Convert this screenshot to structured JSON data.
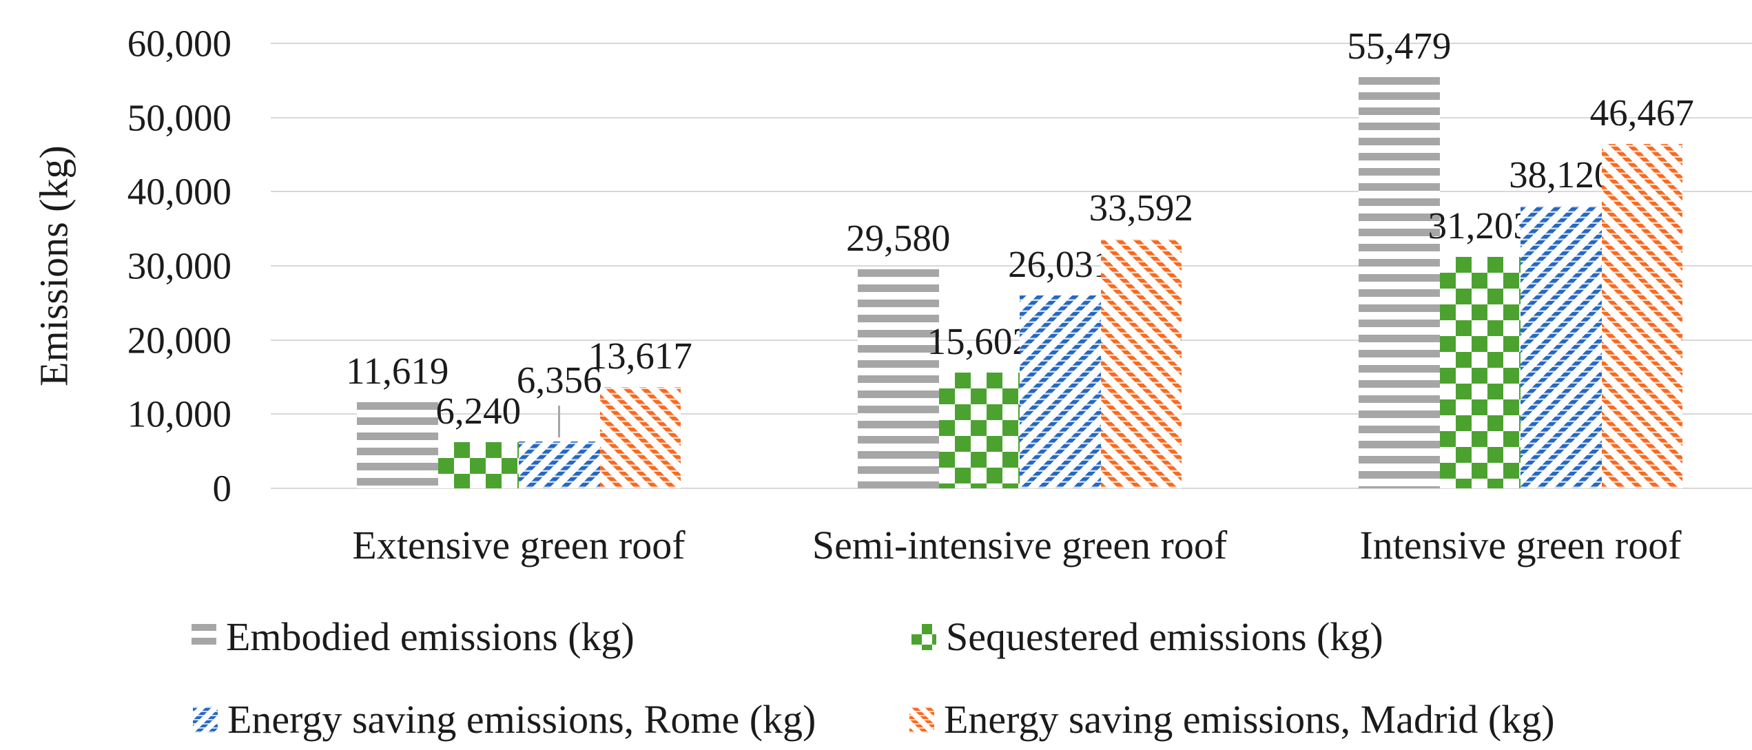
{
  "chart_data": {
    "type": "bar",
    "title": "",
    "ylabel": "Emissions (kg)",
    "xlabel": "",
    "categories": [
      "Extensive green roof",
      "Semi-intensive green roof",
      "Intensive green roof"
    ],
    "series": [
      {
        "name": "Embodied emissions (kg)",
        "values": [
          11619,
          29580,
          55479
        ],
        "value_labels": [
          "11,619",
          "29,580",
          "55,479"
        ],
        "color": "#a6a6a6",
        "pattern": "horizontal-stripes"
      },
      {
        "name": "Sequestered emissions (kg)",
        "values": [
          6240,
          15602,
          31203
        ],
        "value_labels": [
          "6,240",
          "15,602",
          "31,203"
        ],
        "color": "#4ca22f",
        "pattern": "checkerboard"
      },
      {
        "name": "Energy saving emissions, Rome (kg)",
        "values": [
          6356,
          26031,
          38120
        ],
        "value_labels": [
          "6,356",
          "26,031",
          "38,120"
        ],
        "color": "#2668c2",
        "pattern": "diagonal-down"
      },
      {
        "name": "Energy saving emissions, Madrid (kg)",
        "values": [
          13617,
          33592,
          46467
        ],
        "value_labels": [
          "13,617",
          "33,592",
          "46,467"
        ],
        "color": "#f86a1e",
        "pattern": "diagonal-up"
      }
    ],
    "ylim": [
      0,
      60000
    ],
    "ytick_step": 10000,
    "ytick_labels": [
      "0",
      "10,000",
      "20,000",
      "30,000",
      "40,000",
      "50,000",
      "60,000"
    ],
    "grid": true,
    "legend_position": "bottom",
    "callouts": [
      {
        "series_index": 2,
        "category_index": 0
      }
    ]
  }
}
